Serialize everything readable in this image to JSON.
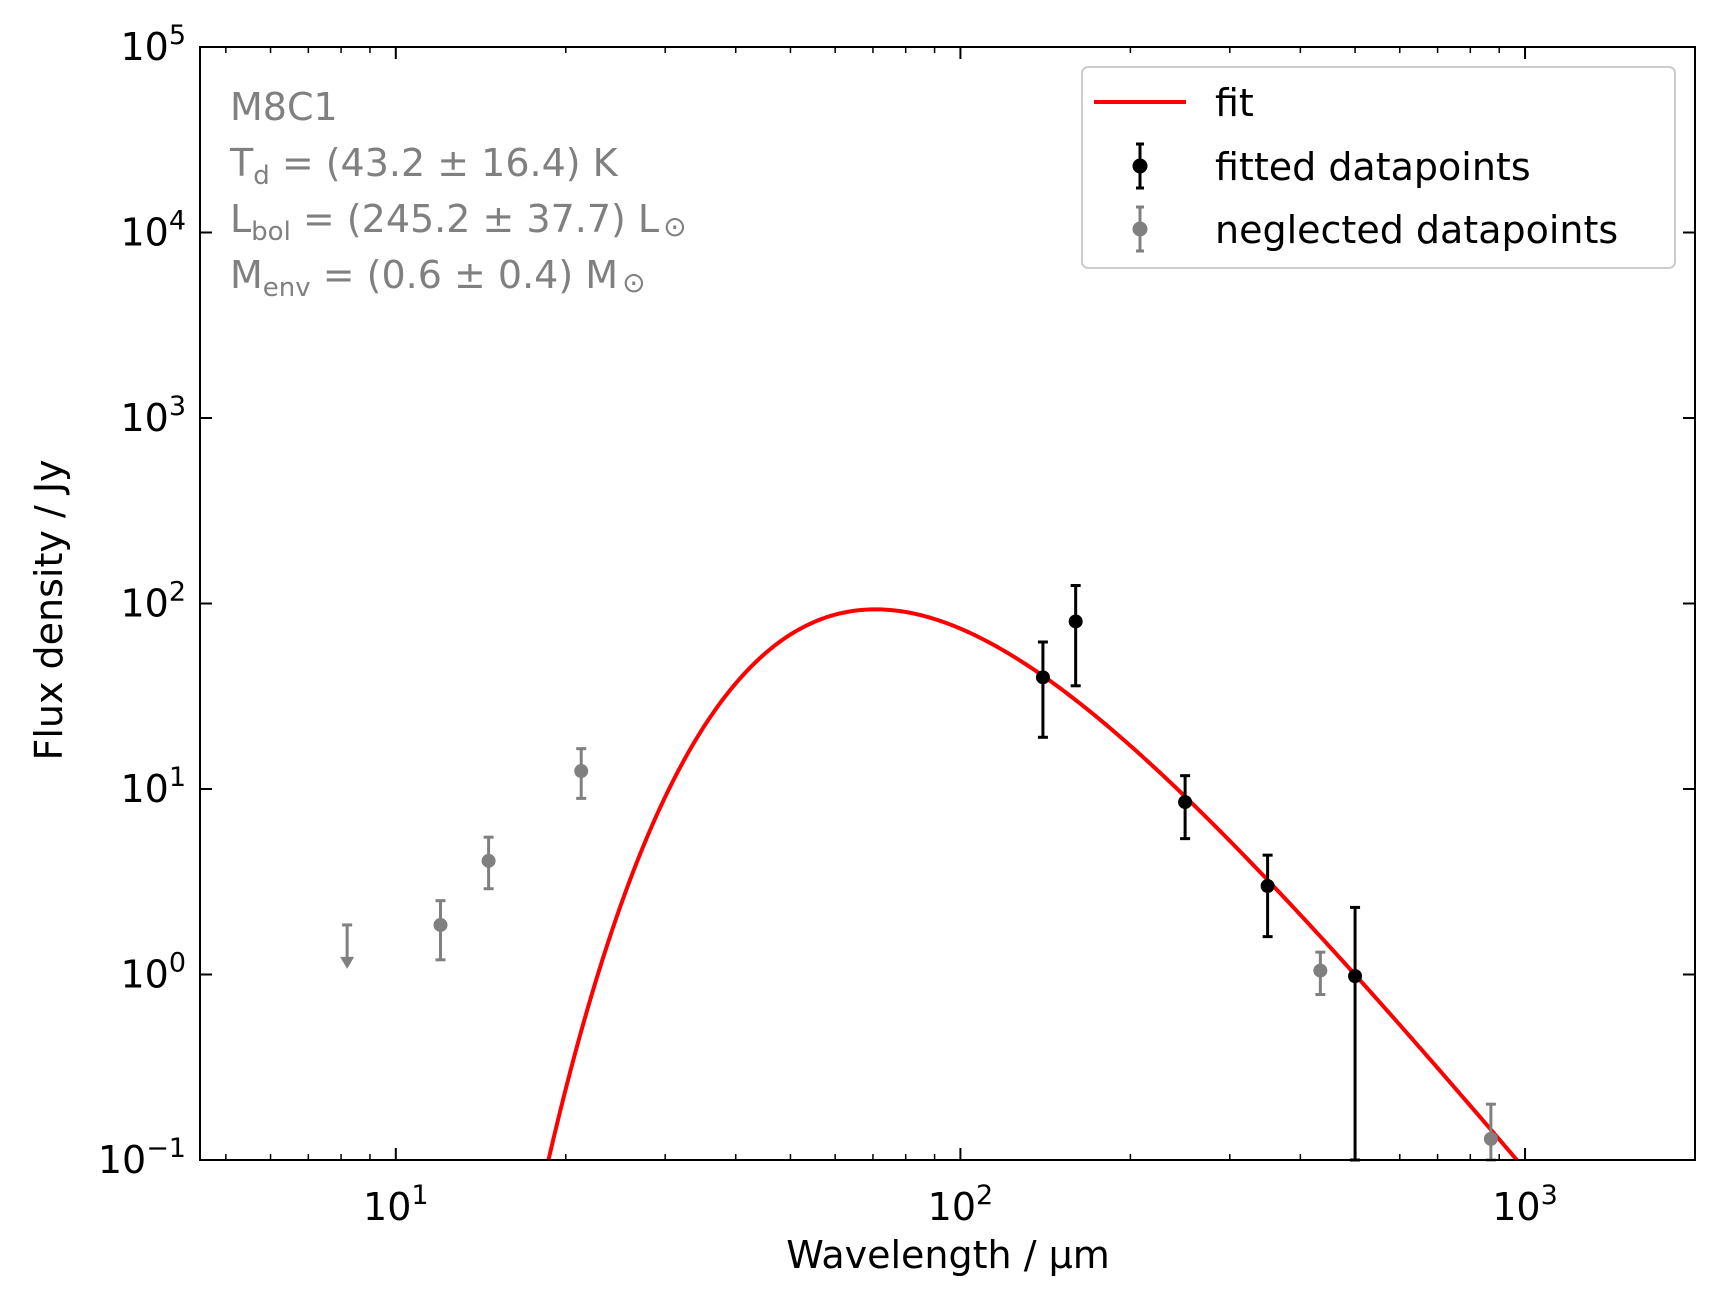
{
  "chart_data": {
    "type": "scatter",
    "xscale": "log",
    "yscale": "log",
    "xlim": [
      4.5,
      2000
    ],
    "ylim": [
      0.1,
      100000
    ],
    "xlabel": "Wavelength / μm",
    "ylabel": "Flux density / Jy",
    "x_ticks": [
      {
        "value": 10,
        "base": "10",
        "exp": "1"
      },
      {
        "value": 100,
        "base": "10",
        "exp": "2"
      },
      {
        "value": 1000,
        "base": "10",
        "exp": "3"
      }
    ],
    "y_ticks": [
      {
        "value": 0.1,
        "base": "10",
        "exp": "−1"
      },
      {
        "value": 1,
        "base": "10",
        "exp": "0"
      },
      {
        "value": 10,
        "base": "10",
        "exp": "1"
      },
      {
        "value": 100,
        "base": "10",
        "exp": "2"
      },
      {
        "value": 1000,
        "base": "10",
        "exp": "3"
      },
      {
        "value": 10000,
        "base": "10",
        "exp": "4"
      },
      {
        "value": 100000,
        "base": "10",
        "exp": "5"
      }
    ],
    "annotation": {
      "source": "M8C1",
      "td": {
        "symbol": "T",
        "sub": "d",
        "value": " = (43.2 ± 16.4) K"
      },
      "lbol": {
        "symbol": "L",
        "sub": "bol",
        "value": " = (245.2 ± 37.7) L",
        "unit": "⊙"
      },
      "menv": {
        "symbol": "M",
        "sub": "env",
        "value": " = (0.6 ± 0.4) M",
        "unit": "⊙"
      }
    },
    "fit": {
      "name": "fit",
      "color": "#ff0000",
      "temperature_K": 43.2,
      "beta": 1.75,
      "peak": {
        "x": 70,
        "y": 93
      },
      "x_start": 18.4,
      "x_end": 980
    },
    "series": [
      {
        "name": "fitted datapoints",
        "color": "#000000",
        "points": [
          {
            "x": 140,
            "y": 40,
            "yerr_low": 19,
            "yerr_high": 62
          },
          {
            "x": 160,
            "y": 80,
            "yerr_low": 36,
            "yerr_high": 125
          },
          {
            "x": 250,
            "y": 8.5,
            "yerr_low": 5.4,
            "yerr_high": 11.8
          },
          {
            "x": 350,
            "y": 3.0,
            "yerr_low": 1.6,
            "yerr_high": 4.4
          },
          {
            "x": 500,
            "y": 0.98,
            "yerr_low": 0.1,
            "yerr_high": 2.3
          }
        ]
      },
      {
        "name": "neglected datapoints",
        "color": "#808080",
        "points": [
          {
            "x": 12,
            "y": 1.85,
            "yerr_low": 1.2,
            "yerr_high": 2.5
          },
          {
            "x": 14.6,
            "y": 4.1,
            "yerr_low": 2.9,
            "yerr_high": 5.5
          },
          {
            "x": 21.3,
            "y": 12.5,
            "yerr_low": 8.9,
            "yerr_high": 16.5
          },
          {
            "x": 434,
            "y": 1.05,
            "yerr_low": 0.78,
            "yerr_high": 1.32
          },
          {
            "x": 870,
            "y": 0.13,
            "yerr_low": 0.1,
            "yerr_high": 0.2
          }
        ],
        "upper_limits": [
          {
            "x": 8.2,
            "y": 1.1,
            "top": 1.85
          }
        ]
      }
    ],
    "legend": {
      "position": "top-right",
      "entries": [
        {
          "label": "fit",
          "kind": "line",
          "color": "#ff0000"
        },
        {
          "label": "fitted datapoints",
          "kind": "errorbar",
          "color": "#000000"
        },
        {
          "label": "neglected datapoints",
          "kind": "errorbar",
          "color": "#808080"
        }
      ]
    },
    "colors": {
      "annotation": "#808080",
      "axes": "#000000"
    }
  }
}
